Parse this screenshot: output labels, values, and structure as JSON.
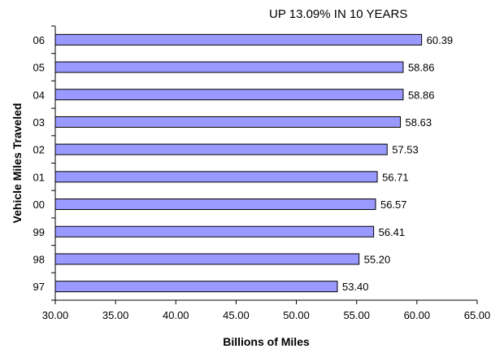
{
  "chart_data": {
    "type": "bar",
    "orientation": "horizontal",
    "annotation": "UP 13.09% IN 10 YEARS",
    "xlabel": "Billions of Miles",
    "ylabel": "Vehicle Miles Traveled",
    "categories": [
      "06",
      "05",
      "04",
      "03",
      "02",
      "01",
      "00",
      "99",
      "98",
      "97"
    ],
    "values": [
      60.39,
      58.86,
      58.86,
      58.63,
      57.53,
      56.71,
      56.57,
      56.41,
      55.2,
      53.4
    ],
    "value_labels": [
      "60.39",
      "58.86",
      "58.86",
      "58.63",
      "57.53",
      "56.71",
      "56.57",
      "56.41",
      "55.20",
      "53.40"
    ],
    "xlim": [
      30,
      65
    ],
    "xticks": [
      30,
      35,
      40,
      45,
      50,
      55,
      60,
      65
    ],
    "xtick_labels": [
      "30.00",
      "35.00",
      "40.00",
      "45.00",
      "50.00",
      "55.00",
      "60.00",
      "65.00"
    ],
    "grid": false,
    "legend": "none",
    "colors": {
      "bar_fill": "#9999ff",
      "bar_stroke": "#000000",
      "axis": "#000000"
    }
  }
}
